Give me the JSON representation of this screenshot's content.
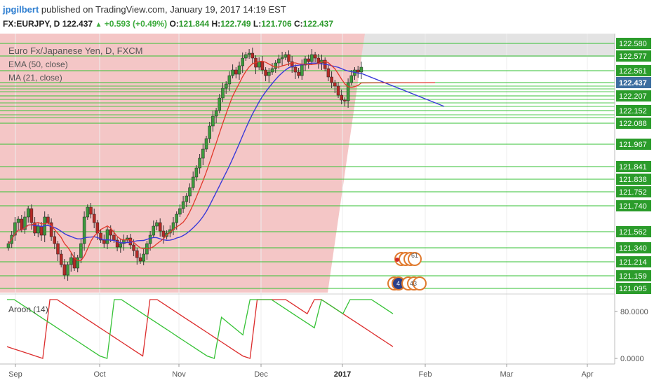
{
  "header": {
    "author": "jpgilbert",
    "published": "published on TradingView.com, January 19, 2017 14:19 EST",
    "symbol": "FX:EURJPY, D",
    "last": "122.437",
    "change": "+0.593 (+0.49%)",
    "o_label": "O:",
    "o_value": "121.844",
    "h_label": "H:",
    "h_value": "122.749",
    "l_label": "L:",
    "l_value": "121.706",
    "c_label": "C:",
    "c_value": "122.437"
  },
  "legend": {
    "instrument": "Euro Fx/Japanese Yen, D, FXCM",
    "ema": "EMA (50, close)",
    "ma": "MA (21, close)",
    "aroon": "Aroon (14)"
  },
  "colors": {
    "up_candle": "#3d9a3d",
    "down_candle": "#b52a26",
    "ema": "#3a3ad8",
    "ma": "#e0392b",
    "level_line": "#33c233",
    "shade": "#f4c6c6",
    "aroon_up": "#36c236",
    "aroon_down": "#dc2c2c",
    "price_tag": "#2b9c2b",
    "last_tag": "#3d6ea0"
  },
  "chart_data": [
    {
      "type": "candlestick",
      "title": "Euro Fx/Japanese Yen, D, FXCM",
      "x": [
        "Sep",
        "Oct",
        "Nov",
        "Dec",
        "2017",
        "Feb",
        "Mar",
        "Apr"
      ],
      "price_labels": [
        "122.580",
        "122.577",
        "122.561",
        "122.437",
        "122.207",
        "122.152",
        "122.088",
        "121.967",
        "121.841",
        "121.838",
        "121.752",
        "121.740",
        "121.562",
        "121.340",
        "121.214",
        "121.159",
        "121.095"
      ],
      "last_price": "122.437",
      "series": [
        {
          "name": "EMA (50, close)",
          "type": "line"
        },
        {
          "name": "MA (21, close)",
          "type": "line"
        }
      ]
    },
    {
      "type": "line",
      "title": "Aroon (14)",
      "y_ticks": [
        "80.0000",
        "0.0000"
      ],
      "ylim": [
        0,
        100
      ],
      "series": [
        {
          "values": [
            20,
            16,
            12,
            8,
            4,
            0,
            100,
            100,
            92,
            84,
            76,
            68,
            60,
            52,
            44,
            36,
            28,
            20,
            12,
            4,
            100,
            100,
            92,
            84,
            76,
            68,
            60,
            52,
            44,
            36,
            28,
            20,
            12,
            4,
            0,
            100,
            100,
            100,
            100,
            100,
            92,
            84,
            76,
            100,
            100,
            92,
            84,
            76,
            68,
            60,
            52,
            44,
            36,
            28,
            20
          ]
        },
        {
          "values": [
            100,
            100,
            92,
            84,
            76,
            68,
            60,
            52,
            44,
            36,
            28,
            20,
            12,
            4,
            0,
            100,
            100,
            92,
            84,
            76,
            68,
            60,
            52,
            44,
            36,
            28,
            20,
            12,
            4,
            0,
            70,
            60,
            50,
            40,
            100,
            100,
            100,
            100,
            92,
            84,
            76,
            68,
            60,
            52,
            100,
            92,
            84,
            76,
            100,
            100,
            100,
            100,
            92,
            84,
            76
          ]
        }
      ]
    }
  ]
}
